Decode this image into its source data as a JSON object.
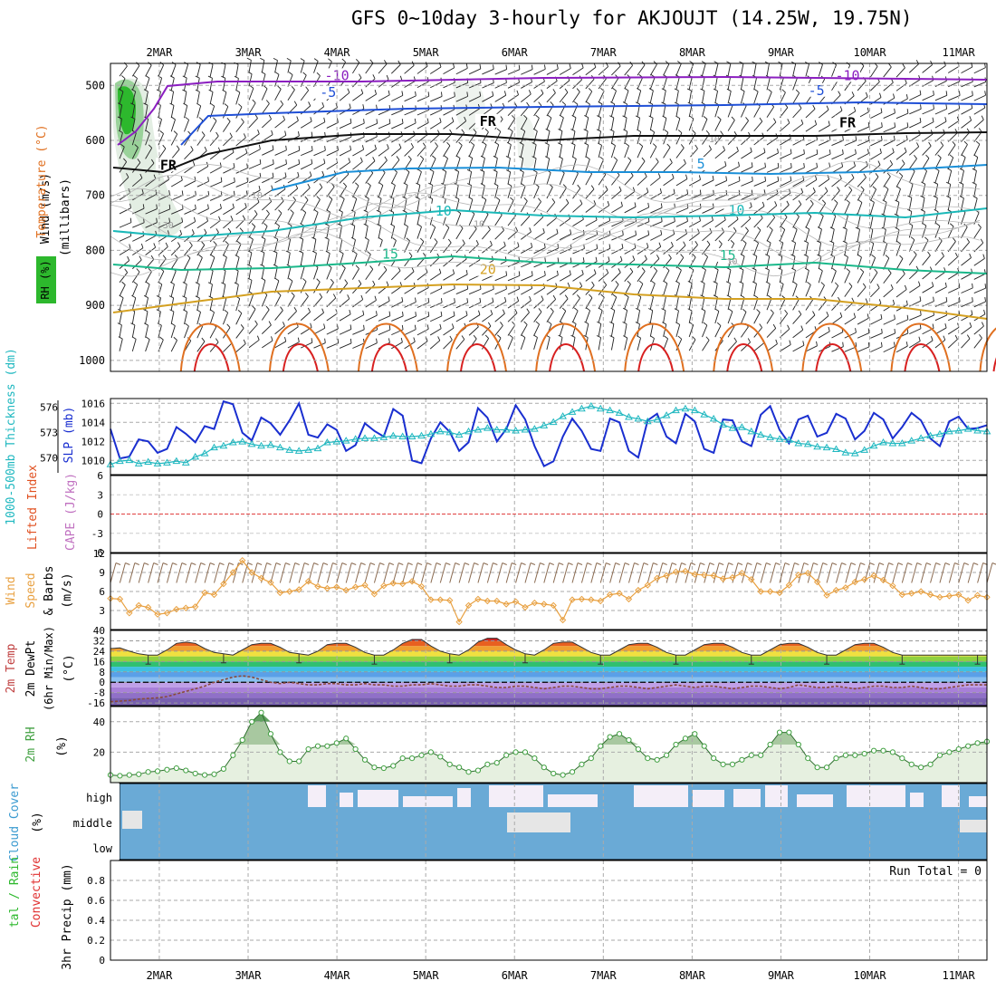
{
  "title": "GFS 0~10day 3-hourly for AKJOUJT (14.25W, 19.75N)",
  "colors": {
    "rh_green": "#2db82d",
    "temp_purple": "#8b1fc0",
    "temp_blue": "#1f4fd6",
    "temp_lightblue": "#1a8fd8",
    "temp_teal": "#1ab8b8",
    "temp_green": "#1ab88a",
    "temp_gold": "#d4a020",
    "temp_orange": "#e07020",
    "temp_red": "#d82020",
    "slp_blue": "#1a2fd0",
    "thickness_cyan": "#20b8c0",
    "wind_orange": "#e8a040",
    "barb_brown": "#8a6a50",
    "rh2m_green": "#40a040",
    "cloud_blue": "#6aaad6",
    "cloud_light": "#f4eef8",
    "cloud_grey": "#e6e6e6",
    "ref_red": "#e04040"
  },
  "chart_data": [
    {
      "type": "heatmap",
      "id": "upper-air",
      "xticks": [
        "2MAR",
        "3MAR",
        "4MAR",
        "5MAR",
        "6MAR",
        "7MAR",
        "8MAR",
        "9MAR",
        "10MAR",
        "11MAR"
      ],
      "ylabel_parts": {
        "rh": "RH (%)",
        "temp": "Temperature (°C)",
        "wind": "Wind (m/s)",
        "p": "(millibars)"
      },
      "yticks": [
        500,
        600,
        700,
        800,
        900,
        1000
      ],
      "ylim": [
        460,
        1020
      ],
      "isotherm_labels": [
        {
          "text": "-10",
          "day": 2.0,
          "p": 487
        },
        {
          "text": "-10",
          "day": 7.75,
          "p": 487
        },
        {
          "text": "-5",
          "day": 1.9,
          "p": 518
        },
        {
          "text": "-5",
          "day": 7.4,
          "p": 514
        },
        {
          "text": "FR",
          "day": 3.7,
          "p": 570
        },
        {
          "text": "FR",
          "day": 7.75,
          "p": 573
        },
        {
          "text": "FR",
          "day": 0.0,
          "p": 650
        },
        {
          "text": "5",
          "day": 6.1,
          "p": 648
        },
        {
          "text": "10",
          "day": 3.2,
          "p": 733
        },
        {
          "text": "10",
          "day": 6.5,
          "p": 732
        },
        {
          "text": "15",
          "day": 2.6,
          "p": 812
        },
        {
          "text": "15",
          "day": 6.4,
          "p": 814
        },
        {
          "text": "20",
          "day": 3.7,
          "p": 840
        }
      ],
      "rh_contour_labels": [
        {
          "text": "30",
          "day": 0.1,
          "p": 760
        },
        {
          "text": "10",
          "day": 1.1,
          "p": 705
        },
        {
          "text": "10",
          "day": 3.6,
          "p": 757
        },
        {
          "text": "10",
          "day": 6.25,
          "p": 603
        },
        {
          "text": "10",
          "day": 6.45,
          "p": 826
        }
      ]
    },
    {
      "type": "line",
      "id": "slp-thickness",
      "ylabel_left": "1000-500mb Thickness (dm)",
      "ylabel_right": "SLP (mb)",
      "yticks_left": [
        570,
        573,
        576
      ],
      "yticks_right": [
        1010,
        1012,
        1014,
        1016
      ],
      "ylim_right": [
        1008.5,
        1016.5
      ],
      "series": [
        {
          "name": "SLP (mb)",
          "values": [
            1013.3,
            1010.2,
            1010.4,
            1012.2,
            1012.0,
            1010.8,
            1011.2,
            1013.5,
            1012.8,
            1011.9,
            1013.6,
            1013.3,
            1016.2,
            1015.9,
            1012.9,
            1012.1,
            1014.5,
            1013.9,
            1012.7,
            1014.2,
            1016.0,
            1012.7,
            1012.4,
            1013.8,
            1013.2,
            1011.0,
            1011.6,
            1013.9,
            1013.1,
            1012.5,
            1015.4,
            1014.7,
            1010.0,
            1009.7,
            1012.3,
            1014.0,
            1013.0,
            1011.0,
            1011.9,
            1015.5,
            1014.5,
            1012.0,
            1013.3,
            1015.8,
            1014.3,
            1011.5,
            1009.4,
            1009.9,
            1012.5,
            1014.4,
            1013.1,
            1011.2,
            1011.0,
            1014.4,
            1014.0,
            1011.0,
            1010.3,
            1014.2,
            1014.9,
            1012.5,
            1011.8,
            1014.9,
            1014.1,
            1011.2,
            1010.8,
            1014.3,
            1014.2,
            1012.0,
            1011.5,
            1014.8,
            1015.7,
            1013.2,
            1011.8,
            1014.3,
            1014.7,
            1012.5,
            1012.9,
            1014.9,
            1014.4,
            1012.2,
            1013.1,
            1015.0,
            1014.3,
            1012.3,
            1013.5,
            1015.0,
            1014.2,
            1012.3,
            1011.5,
            1014.1,
            1014.6,
            1013.3,
            1013.4,
            1013.7
          ]
        },
        {
          "name": "1000-500mb Thickness (dm)",
          "values": [
            569.2,
            569.6,
            569.7,
            569.3,
            569.5,
            569.3,
            569.4,
            569.6,
            569.4,
            570.1,
            570.5,
            571.2,
            571.4,
            571.8,
            571.9,
            571.6,
            571.4,
            571.5,
            571.2,
            570.9,
            570.8,
            570.9,
            571.1,
            571.8,
            571.9,
            572.0,
            572.2,
            572.3,
            572.3,
            572.4,
            572.6,
            572.5,
            572.5,
            572.6,
            572.8,
            573.1,
            573.0,
            572.7,
            573.1,
            573.3,
            573.5,
            573.3,
            573.3,
            573.2,
            573.3,
            573.4,
            573.8,
            574.2,
            574.9,
            575.4,
            575.8,
            576.1,
            575.8,
            575.6,
            575.3,
            574.8,
            574.6,
            574.3,
            574.5,
            575.0,
            575.6,
            575.8,
            575.6,
            575.1,
            574.6,
            573.9,
            573.5,
            573.6,
            573.1,
            572.7,
            572.4,
            572.2,
            572.1,
            571.7,
            571.6,
            571.3,
            571.2,
            571.0,
            570.6,
            570.5,
            570.9,
            571.4,
            571.8,
            571.7,
            571.7,
            572.0,
            572.3,
            572.6,
            572.8,
            573.1,
            573.2,
            573.4,
            573.2,
            573.1
          ]
        }
      ]
    },
    {
      "type": "line",
      "id": "cape-li",
      "ylabel_left": "Lifted Index",
      "ylabel_right": "CAPE (J/kg)",
      "yticks": [
        6,
        3,
        0,
        -3,
        -6
      ],
      "ylim": [
        -6,
        6
      ],
      "reference_line": 0
    },
    {
      "type": "line",
      "id": "wind10m",
      "ylabel": "10m Wind Speed & Barbs (m/s)",
      "yticks": [
        3,
        6,
        9,
        12
      ],
      "ylim": [
        0,
        12
      ],
      "series": [
        {
          "name": "10m Wind Speed",
          "values": [
            4.9,
            4.8,
            2.6,
            3.8,
            3.5,
            2.4,
            2.6,
            3.2,
            3.4,
            3.6,
            5.8,
            5.5,
            7.2,
            9.0,
            10.9,
            9.0,
            8.1,
            7.4,
            5.8,
            6.0,
            6.3,
            7.6,
            6.8,
            6.5,
            6.7,
            6.2,
            6.7,
            7.0,
            5.6,
            6.9,
            7.3,
            7.2,
            7.6,
            6.8,
            4.7,
            4.7,
            4.6,
            1.2,
            3.8,
            4.8,
            4.5,
            4.5,
            4.0,
            4.4,
            3.5,
            4.2,
            4.0,
            3.8,
            1.5,
            4.7,
            4.8,
            4.7,
            4.5,
            5.5,
            5.7,
            4.8,
            6.2,
            7.0,
            8.1,
            8.5,
            9.1,
            9.2,
            8.7,
            8.6,
            8.5,
            8.0,
            8.2,
            8.9,
            7.9,
            6.0,
            6.0,
            5.8,
            7.0,
            8.6,
            8.9,
            7.5,
            5.4,
            6.2,
            6.6,
            7.5,
            7.9,
            8.5,
            7.8,
            6.9,
            5.5,
            5.7,
            6.0,
            5.5,
            5.1,
            5.3,
            5.5,
            4.6,
            5.4,
            5.1
          ]
        }
      ]
    },
    {
      "type": "area",
      "id": "temp2m",
      "ylabel": "2m Temp 2m DewPt (6hr Min/Max) (°C)",
      "yticks": [
        -16,
        -8,
        0,
        8,
        16,
        24,
        32,
        40
      ],
      "ylim": [
        -18,
        40
      ],
      "series": [
        {
          "name": "2m Temp",
          "values": [
            26,
            26.5,
            24,
            22,
            21,
            21,
            25,
            30,
            31,
            30,
            26,
            23,
            22,
            21,
            25,
            29,
            30,
            30,
            27,
            23,
            22,
            21,
            24,
            29,
            30,
            30,
            27,
            23,
            21,
            21,
            25,
            30,
            33,
            33,
            28,
            24,
            22,
            21,
            25,
            31,
            34,
            34,
            29,
            25,
            22,
            21,
            25,
            30,
            31,
            31,
            27,
            23,
            21,
            21,
            25,
            29,
            30,
            30,
            27,
            23,
            21,
            21,
            25,
            29,
            30,
            30,
            27,
            23,
            21,
            21,
            25,
            29,
            30,
            30,
            27,
            23,
            21,
            21,
            25,
            29,
            30,
            30,
            27,
            23,
            21,
            21,
            21,
            21,
            21,
            21,
            21,
            21,
            21,
            21
          ]
        },
        {
          "name": "2m DewPt",
          "values": [
            -15,
            -14.5,
            -14,
            -13,
            -12.5,
            -12,
            -11,
            -9,
            -7,
            -5,
            -3,
            0,
            2,
            4,
            5,
            4,
            2,
            0,
            -1,
            0,
            -1,
            -2,
            -2,
            -1,
            -1,
            -2,
            -2,
            -1,
            -2,
            -2,
            -3,
            -3,
            -2,
            -2,
            -1,
            -2,
            -3,
            -3,
            -2,
            -2,
            -3,
            -4,
            -4,
            -3,
            -3,
            -4,
            -5,
            -4,
            -3,
            -3,
            -4,
            -5,
            -5,
            -4,
            -3,
            -3,
            -4,
            -5,
            -4,
            -3,
            -2,
            -3,
            -4,
            -3,
            -3,
            -4,
            -5,
            -4,
            -3,
            -3,
            -4,
            -5,
            -4,
            -2,
            -3,
            -4,
            -4,
            -3,
            -4,
            -5,
            -4,
            -3,
            -3,
            -4,
            -4,
            -3,
            -4,
            -5,
            -5,
            -4,
            -3,
            -2,
            -2,
            -2
          ]
        }
      ]
    },
    {
      "type": "area",
      "id": "rh2m",
      "ylabel": "2m RH (%)",
      "yticks": [
        20,
        40
      ],
      "ylim": [
        0,
        50
      ],
      "series": [
        {
          "name": "2m RH",
          "values": [
            5,
            4.5,
            5,
            5.5,
            7,
            7.5,
            8.5,
            9.5,
            8,
            6,
            5,
            5.5,
            9,
            18,
            28,
            40,
            46,
            32,
            20,
            14,
            14,
            22,
            24,
            24,
            26,
            29,
            22,
            15,
            10,
            9.5,
            11,
            16,
            16,
            18,
            20,
            17,
            12,
            10,
            7,
            8,
            12,
            13,
            18,
            20,
            20,
            16,
            10,
            6,
            5,
            7,
            12,
            16,
            24,
            30,
            32,
            28,
            22,
            16,
            15,
            18,
            25,
            29,
            32,
            24,
            16,
            12,
            12,
            15,
            18,
            18,
            25,
            33,
            33,
            25,
            16,
            10,
            10,
            16,
            18,
            18,
            19,
            21,
            21,
            20,
            16,
            12,
            10,
            12,
            18,
            20,
            22,
            24,
            26,
            27
          ]
        }
      ]
    },
    {
      "type": "heatmap",
      "id": "cloud",
      "ylabel": "Cloud Cover (%)",
      "rows": [
        "high",
        "middle",
        "low"
      ]
    },
    {
      "type": "bar",
      "id": "precip",
      "ylabel": "3hr Precip (mm)",
      "legend_parts": {
        "a": "tal / Rain",
        "b": "Convective"
      },
      "yticks": [
        0,
        0.2,
        0.4,
        0.6,
        0.8
      ],
      "ylim": [
        0,
        1.0
      ],
      "run_total": "Run Total = 0",
      "values": []
    }
  ]
}
